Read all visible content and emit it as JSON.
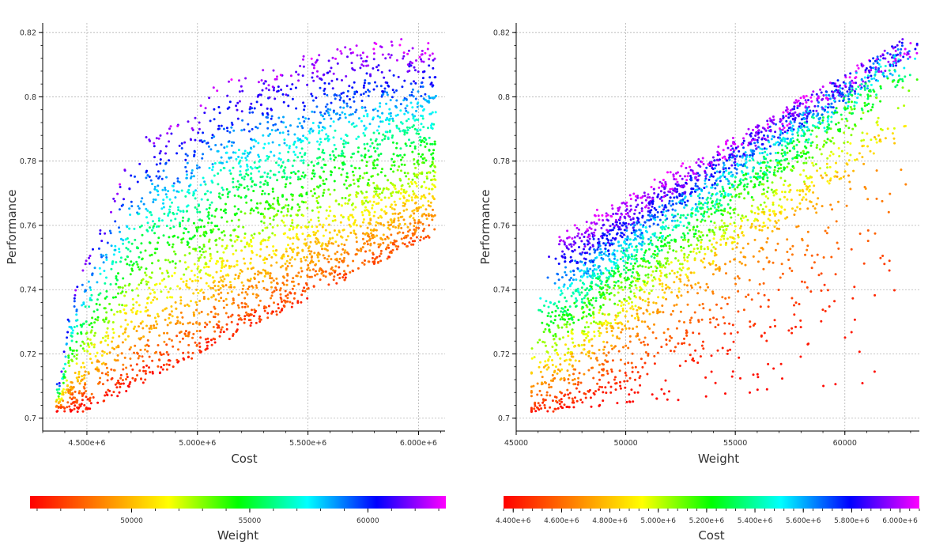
{
  "colors": {
    "background": "#ffffff",
    "grid": "#b4b4b4",
    "axis": "#000000",
    "text": "#333333",
    "colormap": [
      "#ff0000",
      "#ff8000",
      "#ffff00",
      "#00ff00",
      "#00ffff",
      "#0000ff",
      "#ff00ff"
    ]
  },
  "chart_data": [
    {
      "type": "scatter",
      "xlabel": "Cost",
      "ylabel": "Performance",
      "xlim": [
        4300000,
        6120000
      ],
      "ylim": [
        0.696,
        0.823
      ],
      "xticks": [
        4500000,
        5000000,
        5500000,
        6000000
      ],
      "xtick_labels": [
        "4.500e+6",
        "5.000e+6",
        "5.500e+6",
        "6.000e+6"
      ],
      "yticks": [
        0.7,
        0.72,
        0.74,
        0.76,
        0.78,
        0.8,
        0.82
      ],
      "ytick_labels": [
        "0.7",
        "0.72",
        "0.74",
        "0.76",
        "0.78",
        "0.8",
        "0.82"
      ],
      "grid": true,
      "color_by": "Weight",
      "points_approx": 3400,
      "color_range": [
        45700,
        63300
      ],
      "colorbar": {
        "label": "Weight",
        "ticks": [
          50000,
          55000,
          60000
        ],
        "tick_labels": [
          "50000",
          "55000",
          "60000"
        ]
      },
      "pareto_front": [
        [
          4380000,
          0.712
        ],
        [
          4420000,
          0.735
        ],
        [
          4500000,
          0.752
        ],
        [
          4600000,
          0.766
        ],
        [
          4700000,
          0.782
        ],
        [
          4780000,
          0.789
        ],
        [
          4900000,
          0.792
        ],
        [
          5000000,
          0.796
        ],
        [
          5080000,
          0.804
        ],
        [
          5200000,
          0.808
        ],
        [
          5400000,
          0.811
        ],
        [
          5600000,
          0.816
        ],
        [
          5800000,
          0.818
        ],
        [
          5950000,
          0.818
        ]
      ],
      "cost_range": [
        4360000,
        6080000
      ],
      "weight_range": [
        45700,
        63300
      ],
      "performance_range": [
        0.702,
        0.818
      ]
    },
    {
      "type": "scatter",
      "xlabel": "Weight",
      "ylabel": "Performance",
      "xlim": [
        45000,
        63400
      ],
      "ylim": [
        0.696,
        0.823
      ],
      "xticks": [
        45000,
        50000,
        55000,
        60000
      ],
      "xtick_labels": [
        "45000",
        "50000",
        "55000",
        "60000"
      ],
      "yticks": [
        0.7,
        0.72,
        0.74,
        0.76,
        0.78,
        0.8,
        0.82
      ],
      "ytick_labels": [
        "0.7",
        "0.72",
        "0.74",
        "0.76",
        "0.78",
        "0.8",
        "0.82"
      ],
      "grid": true,
      "color_by": "Cost",
      "points_approx": 3400,
      "color_range": [
        4360000,
        6080000
      ],
      "colorbar": {
        "label": "Cost",
        "ticks": [
          4400000,
          4600000,
          4800000,
          5000000,
          5200000,
          5400000,
          5600000,
          5800000,
          6000000
        ],
        "tick_labels": [
          "4.400e+6",
          "4.600e+6",
          "4.800e+6",
          "5.000e+6",
          "5.200e+6",
          "5.400e+6",
          "5.600e+6",
          "5.800e+6",
          "6.000e+6"
        ]
      }
    }
  ]
}
